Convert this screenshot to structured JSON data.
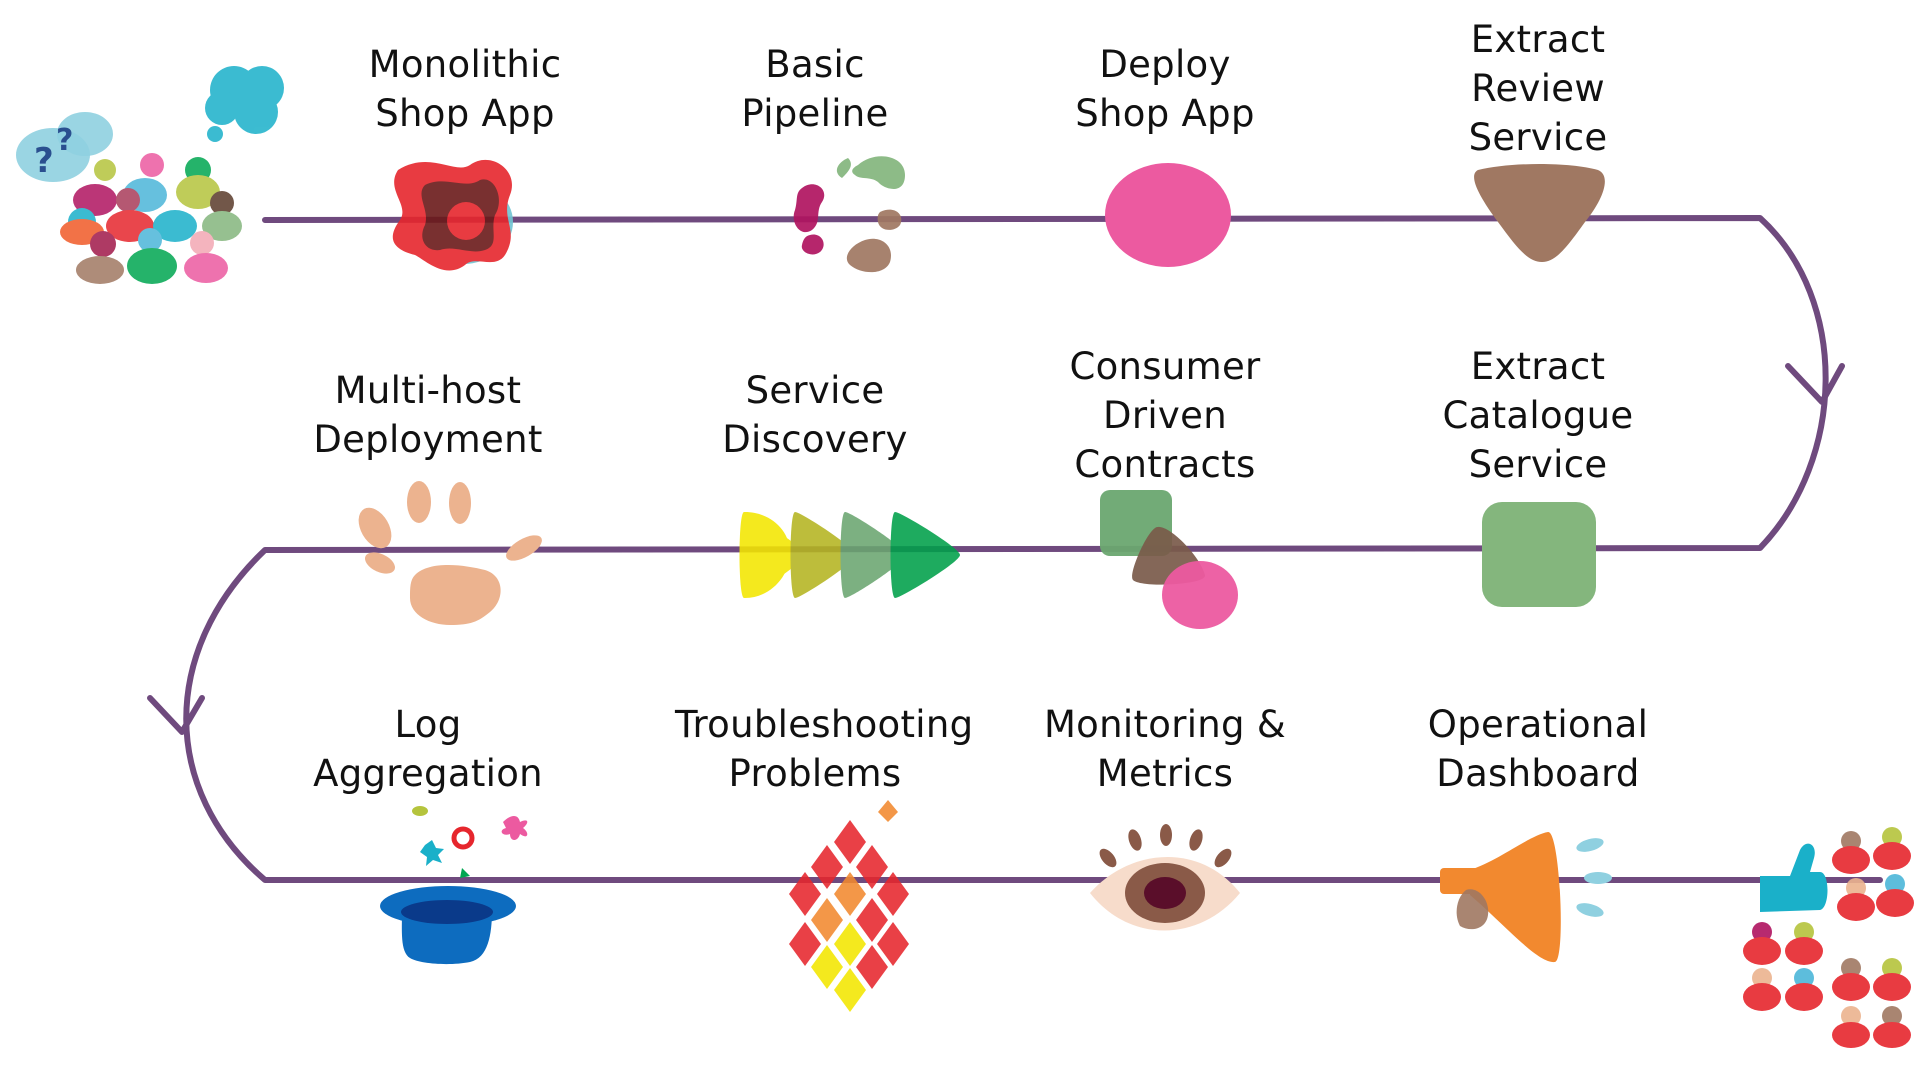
{
  "steps": [
    {
      "id": "monolithic-shop-app",
      "lines": [
        "Monolithic",
        "Shop App"
      ]
    },
    {
      "id": "basic-pipeline",
      "lines": [
        "Basic",
        "Pipeline"
      ]
    },
    {
      "id": "deploy-shop-app",
      "lines": [
        "Deploy",
        "Shop App"
      ]
    },
    {
      "id": "extract-review-service",
      "lines": [
        "Extract",
        "Review",
        "Service"
      ]
    },
    {
      "id": "multi-host-deployment",
      "lines": [
        "Multi-host",
        "Deployment"
      ]
    },
    {
      "id": "service-discovery",
      "lines": [
        "Service",
        "Discovery"
      ]
    },
    {
      "id": "consumer-driven-contracts",
      "lines": [
        "Consumer",
        "Driven",
        "Contracts"
      ]
    },
    {
      "id": "extract-catalogue-service",
      "lines": [
        "Extract",
        "Catalogue",
        "Service"
      ]
    },
    {
      "id": "log-aggregation",
      "lines": [
        "Log",
        "Aggregation"
      ]
    },
    {
      "id": "troubleshooting-problems",
      "lines": [
        "Troubleshooting",
        "Problems"
      ]
    },
    {
      "id": "monitoring-and-metrics",
      "lines": [
        "Monitoring &",
        "Metrics"
      ]
    },
    {
      "id": "operational-dashboard",
      "lines": [
        "Operational",
        "Dashboard"
      ]
    }
  ],
  "icons": {
    "start": "confused-crowd-icon",
    "end": "happy-crowd-icon",
    "monolithic-shop-app": "monolith-blob-icon",
    "basic-pipeline": "pipeline-cycle-icon",
    "deploy-shop-app": "pink-circle-icon",
    "extract-review-service": "brown-triangle-icon",
    "multi-host-deployment": "hand-print-icon",
    "service-discovery": "arrow-chevrons-icon",
    "consumer-driven-contracts": "overlapping-shapes-icon",
    "extract-catalogue-service": "green-square-icon",
    "log-aggregation": "magic-hat-icon",
    "troubleshooting-problems": "fire-icon",
    "monitoring-and-metrics": "eye-icon",
    "operational-dashboard": "megaphone-icon"
  },
  "colors": {
    "path": "#6f4a7e",
    "text": "#111111",
    "pink": "#ec5aa0",
    "brown": "#a07862",
    "green": "#84b67d",
    "red": "#e6262d",
    "orange": "#f2892f",
    "blue": "#0d6cbf"
  }
}
